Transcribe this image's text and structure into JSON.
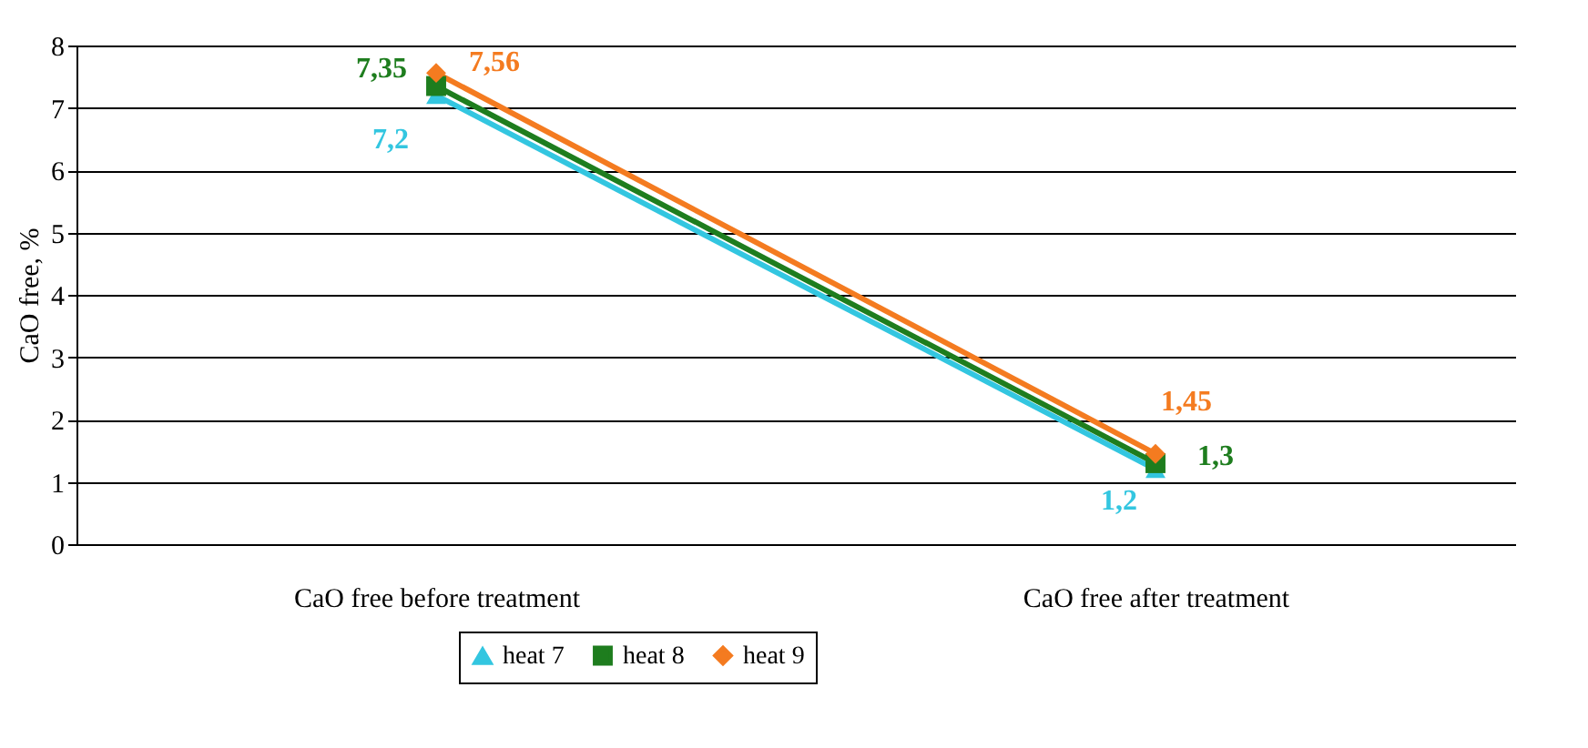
{
  "chart_data": {
    "type": "line",
    "ylabel": "CaO free, %",
    "categories": [
      "CaO free before treatment",
      "CaO free after treatment"
    ],
    "series": [
      {
        "name": "heat 7",
        "color": "#33c6e0",
        "marker": "triangle",
        "values": [
          7.2,
          1.2
        ],
        "value_labels": [
          "7,2",
          "1,2"
        ]
      },
      {
        "name": "heat 8",
        "color": "#1e7d1e",
        "marker": "square",
        "values": [
          7.35,
          1.3
        ],
        "value_labels": [
          "7,35",
          "1,3"
        ]
      },
      {
        "name": "heat 9",
        "color": "#f47b20",
        "marker": "diamond",
        "values": [
          7.56,
          1.45
        ],
        "value_labels": [
          "7,56",
          "1,45"
        ]
      }
    ],
    "ylim": [
      0,
      8
    ],
    "yticks": [
      0,
      1,
      2,
      3,
      4,
      5,
      6,
      7,
      8
    ],
    "grid": "y",
    "legend": "bottom"
  }
}
